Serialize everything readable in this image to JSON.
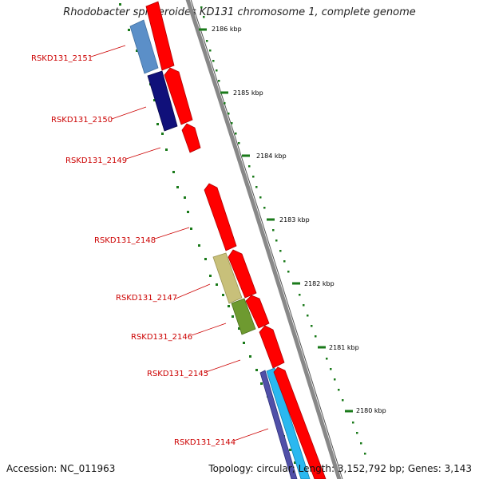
{
  "title": "Rhodobacter sphaeroides KD131 chromosome 1, complete genome",
  "accession_label": "Accession: NC_011963",
  "topology_label": "Topology: circular; Length: 3,152,792 bp; Genes: 3,143",
  "colors": {
    "gene_red": "#ff0000",
    "backbone": "#888888",
    "tick_green": "#1a7a1a",
    "label_red": "#cc0000",
    "steel_blue": "#5b8fc8",
    "navy": "#10107a",
    "khaki": "#c8c07a",
    "olive": "#6e9a30",
    "cyan": "#2ab8f0",
    "slate_blue": "#5050a8"
  },
  "ticks": [
    {
      "label": "2186 kbp"
    },
    {
      "label": "2185 kbp"
    },
    {
      "label": "2184 kbp"
    },
    {
      "label": "2183 kbp"
    },
    {
      "label": "2182 kbp"
    },
    {
      "label": "2181 kbp"
    },
    {
      "label": "2180 kbp"
    }
  ],
  "genes": [
    {
      "label": "RSKD131_2151"
    },
    {
      "label": "RSKD131_2150"
    },
    {
      "label": "RSKD131_2149"
    },
    {
      "label": "RSKD131_2148"
    },
    {
      "label": "RSKD131_2147"
    },
    {
      "label": "RSKD131_2146"
    },
    {
      "label": "RSKD131_2145"
    },
    {
      "label": "RSKD131_2144"
    }
  ]
}
